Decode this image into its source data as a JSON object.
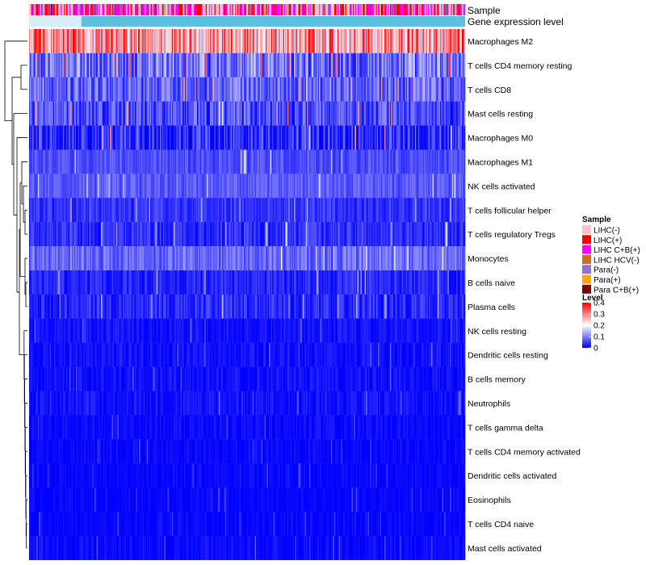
{
  "chart_data": {
    "type": "heatmap",
    "annotations": [
      "Sample",
      "Gene expression level"
    ],
    "rows": [
      {
        "label": "Macrophages M2",
        "mean": 0.27,
        "spread": 0.13
      },
      {
        "label": "T cells CD4 memory resting",
        "mean": 0.09,
        "spread": 0.08
      },
      {
        "label": "T cells CD8",
        "mean": 0.08,
        "spread": 0.06
      },
      {
        "label": "Mast cells resting",
        "mean": 0.06,
        "spread": 0.06
      },
      {
        "label": "Macrophages M0",
        "mean": 0.03,
        "spread": 0.07
      },
      {
        "label": "Macrophages M1",
        "mean": 0.06,
        "spread": 0.03
      },
      {
        "label": "NK cells activated",
        "mean": 0.07,
        "spread": 0.03
      },
      {
        "label": "T cells follicular helper",
        "mean": 0.04,
        "spread": 0.03
      },
      {
        "label": "T cells regulatory  Tregs",
        "mean": 0.035,
        "spread": 0.035
      },
      {
        "label": "Monocytes",
        "mean": 0.08,
        "spread": 0.04
      },
      {
        "label": "B cells naive",
        "mean": 0.03,
        "spread": 0.03
      },
      {
        "label": "Plasma cells",
        "mean": 0.03,
        "spread": 0.035
      },
      {
        "label": "NK cells resting",
        "mean": 0.012,
        "spread": 0.02
      },
      {
        "label": "Dendritic cells resting",
        "mean": 0.012,
        "spread": 0.02
      },
      {
        "label": "B cells memory",
        "mean": 0.012,
        "spread": 0.02
      },
      {
        "label": "Neutrophils",
        "mean": 0.015,
        "spread": 0.02
      },
      {
        "label": "T cells gamma delta",
        "mean": 0.006,
        "spread": 0.018
      },
      {
        "label": "T cells CD4 memory activated",
        "mean": 0.005,
        "spread": 0.016
      },
      {
        "label": "Dendritic cells activated",
        "mean": 0.004,
        "spread": 0.016
      },
      {
        "label": "Eosinophils",
        "mean": 0.003,
        "spread": 0.014
      },
      {
        "label": "T cells CD4 naive",
        "mean": 0.004,
        "spread": 0.016
      },
      {
        "label": "Mast cells activated",
        "mean": 0.006,
        "spread": 0.018
      }
    ],
    "sample_legend": {
      "title": "Sample",
      "items": [
        {
          "label": "LIHC(-)",
          "color": "#ffc0cb"
        },
        {
          "label": "LIHC(+)",
          "color": "#ff0000"
        },
        {
          "label": "LIHC C+B(+)",
          "color": "#ff00ff"
        },
        {
          "label": "LIHC HCV(-)",
          "color": "#d2691e"
        },
        {
          "label": "Para(-)",
          "color": "#9370db"
        },
        {
          "label": "Para(+)",
          "color": "#ffa500"
        },
        {
          "label": "Para C+B(+)",
          "color": "#800000"
        }
      ]
    },
    "level_legend": {
      "title": "Level",
      "ticks": [
        "0.4",
        "0.3",
        "0.2",
        "0.1",
        "0"
      ],
      "tick_values": [
        0.4,
        0.3,
        0.2,
        0.1,
        0
      ],
      "colors": [
        "#0000ff",
        "#ffffff",
        "#ff0000"
      ],
      "range": [
        0,
        0.4
      ]
    },
    "gene_expression_color": "#5bc0e0",
    "n_samples": 400
  }
}
